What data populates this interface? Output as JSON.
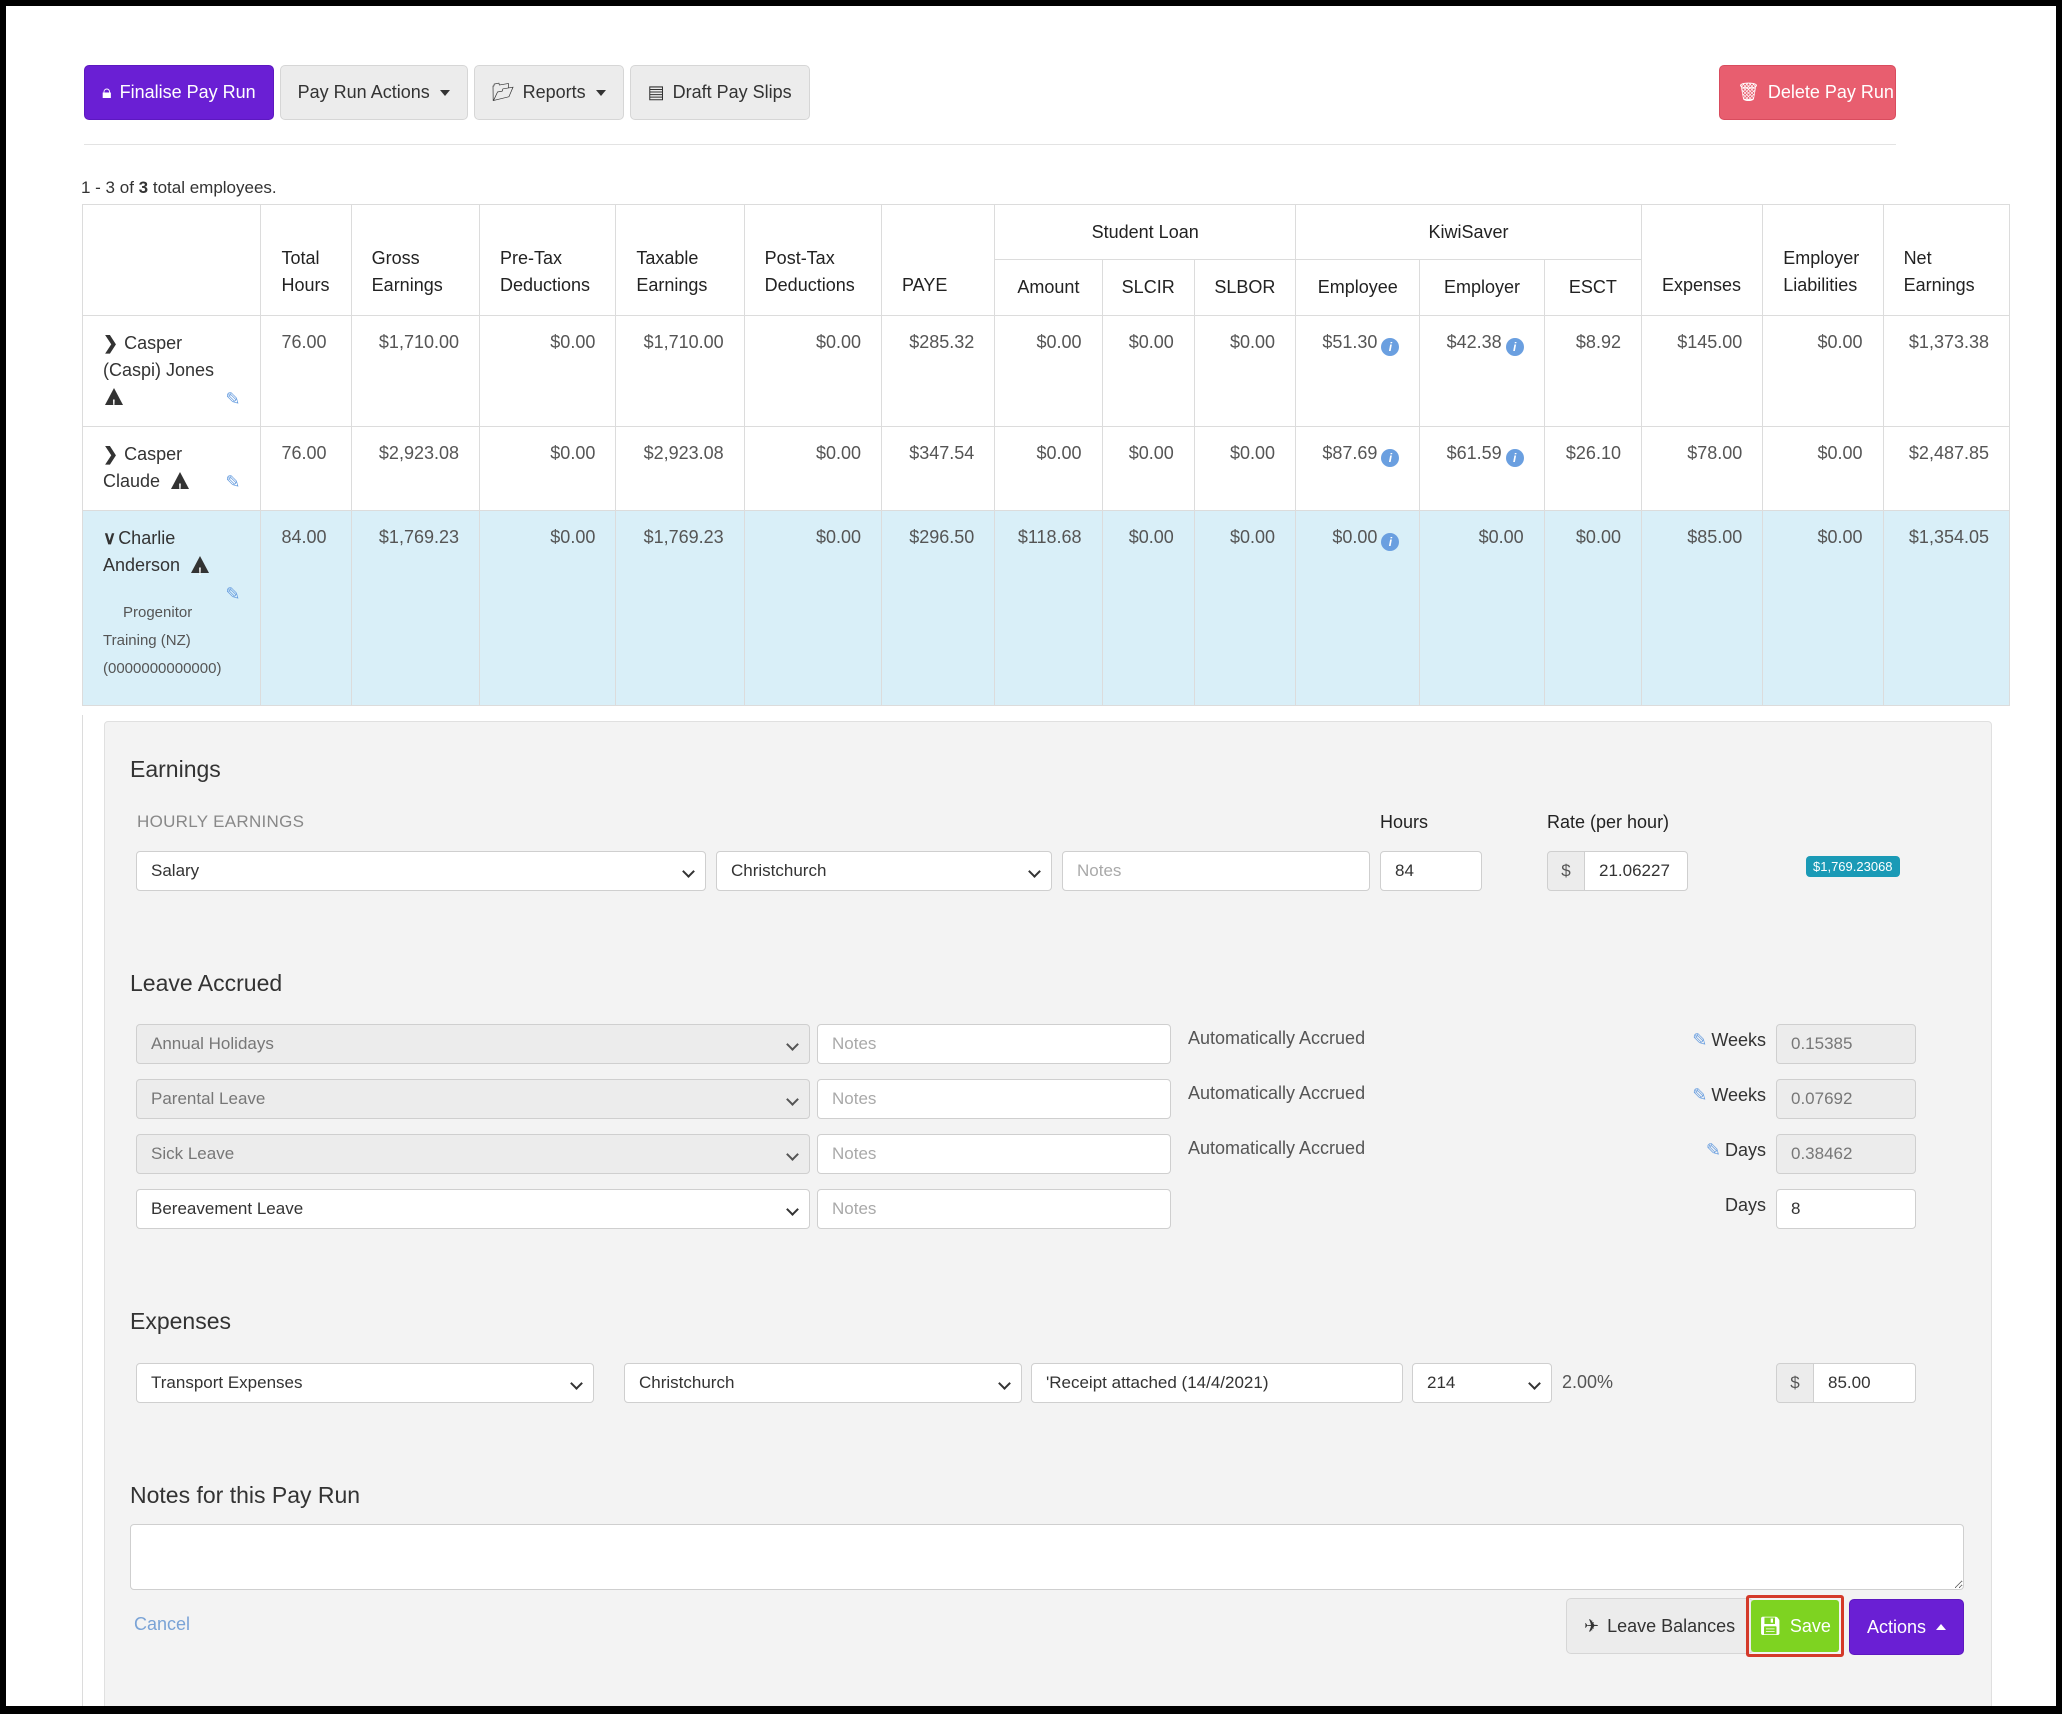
{
  "toolbar": {
    "finalise": "Finalise Pay Run",
    "pay_run_actions": "Pay Run Actions",
    "reports": "Reports",
    "draft_pay_slips": "Draft Pay Slips",
    "delete": "Delete Pay Run"
  },
  "count": {
    "range": "1 - 3 of",
    "total": "3",
    "suffix": "total employees."
  },
  "table": {
    "groups": {
      "student_loan": "Student Loan",
      "kiwisaver": "KiwiSaver"
    },
    "headers": {
      "total_hours": [
        "Total",
        "Hours"
      ],
      "gross": [
        "Gross",
        "Earnings"
      ],
      "pretax": [
        "Pre-Tax",
        "Deductions"
      ],
      "taxable": [
        "Taxable",
        "Earnings"
      ],
      "posttax": [
        "Post-Tax",
        "Deductions"
      ],
      "paye": "PAYE",
      "amount": "Amount",
      "slcir": "SLCIR",
      "slbor": "SLBOR",
      "employee": "Employee",
      "employer": "Employer",
      "esct": "ESCT",
      "expenses": "Expenses",
      "liabilities": [
        "Employer",
        "Liabilities"
      ],
      "net": [
        "Net",
        "Earnings"
      ]
    },
    "rows": [
      {
        "name_lines": [
          "Casper",
          "(Caspi) Jones"
        ],
        "values": [
          "76.00",
          "$1,710.00",
          "$0.00",
          "$1,710.00",
          "$0.00",
          "$285.32",
          "$0.00",
          "$0.00",
          "$0.00",
          "$51.30",
          "$42.38",
          "$8.92",
          "$145.00",
          "$0.00",
          "$1,373.38"
        ]
      },
      {
        "name_lines": [
          "Casper",
          "Claude"
        ],
        "values": [
          "76.00",
          "$2,923.08",
          "$0.00",
          "$2,923.08",
          "$0.00",
          "$347.54",
          "$0.00",
          "$0.00",
          "$0.00",
          "$87.69",
          "$61.59",
          "$26.10",
          "$78.00",
          "$0.00",
          "$2,487.85"
        ]
      },
      {
        "name_lines": [
          "Charlie",
          "Anderson"
        ],
        "sub": [
          "Progenitor",
          "Training (NZ)",
          "(0000000000000)"
        ],
        "values": [
          "84.00",
          "$1,769.23",
          "$0.00",
          "$1,769.23",
          "$0.00",
          "$296.50",
          "$118.68",
          "$0.00",
          "$0.00",
          "$0.00",
          "$0.00",
          "$0.00",
          "$85.00",
          "$0.00",
          "$1,354.05"
        ]
      }
    ]
  },
  "earnings": {
    "title": "Earnings",
    "subtitle": "HOURLY EARNINGS",
    "hours_label": "Hours",
    "rate_label": "Rate (per hour)",
    "type": "Salary",
    "location": "Christchurch",
    "notes_placeholder": "Notes",
    "hours": "84",
    "currency": "$",
    "rate": "21.06227",
    "total_badge": "$1,769.23068"
  },
  "leave": {
    "title": "Leave Accrued",
    "notes_placeholder": "Notes",
    "rows": [
      {
        "type": "Annual Holidays",
        "status": "Automatically Accrued",
        "unit": "Weeks",
        "value": "0.15385"
      },
      {
        "type": "Parental Leave",
        "status": "Automatically Accrued",
        "unit": "Weeks",
        "value": "0.07692"
      },
      {
        "type": "Sick Leave",
        "status": "Automatically Accrued",
        "unit": "Days",
        "value": "0.38462"
      },
      {
        "type": "Bereavement Leave",
        "status": "",
        "unit": "Days",
        "value": "8"
      }
    ]
  },
  "expenses": {
    "title": "Expenses",
    "type": "Transport Expenses",
    "location": "Christchurch",
    "notes": "'Receipt attached (14/4/2021)",
    "code": "214",
    "percent": "2.00%",
    "currency": "$",
    "amount": "85.00"
  },
  "notes_section": {
    "title": "Notes for this Pay Run"
  },
  "footer": {
    "cancel": "Cancel",
    "leave_balances": "Leave Balances",
    "save": "Save",
    "actions": "Actions"
  },
  "colors": {
    "purple": "#6a1fd4",
    "red": "#e85e6f",
    "green": "#7ed321",
    "highlight": "#d9eff8",
    "badge": "#1a9ab6"
  }
}
